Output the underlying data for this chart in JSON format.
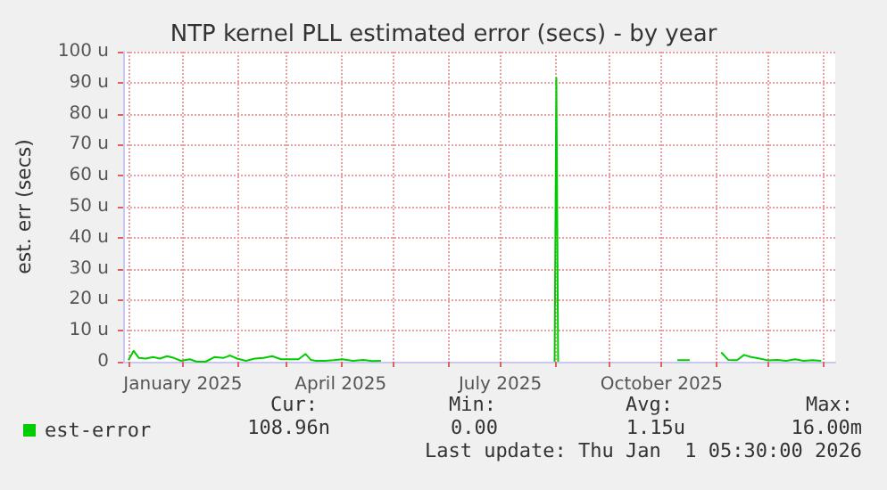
{
  "chart_data": {
    "type": "line",
    "title": "NTP kernel PLL estimated error (secs) - by year",
    "ylabel": "est. err (secs)",
    "x": [
      "2024-12-01",
      "2024-12-04",
      "2024-12-07",
      "2024-12-11",
      "2024-12-15",
      "2024-12-19",
      "2024-12-23",
      "2024-12-27",
      "2024-12-31",
      "2025-01-05",
      "2025-01-09",
      "2025-01-14",
      "2025-01-19",
      "2025-01-24",
      "2025-01-28",
      "2025-02-01",
      "2025-02-06",
      "2025-02-11",
      "2025-02-16",
      "2025-02-21",
      "2025-02-26",
      "2025-03-03",
      "2025-03-08",
      "2025-03-12",
      "2025-03-15",
      "2025-03-18",
      "2025-03-23",
      "2025-03-28",
      "2025-04-02",
      "2025-04-08",
      "2025-04-14",
      "2025-04-19",
      "2025-04-24",
      "2025-04-25",
      "2025-08-01",
      "2025-08-02",
      "2025-08-03",
      "2025-08-04",
      "2025-10-10",
      "2025-10-17",
      "2025-10-18",
      "2025-11-03",
      "2025-11-04",
      "2025-11-08",
      "2025-11-13",
      "2025-11-17",
      "2025-11-21",
      "2025-11-26",
      "2025-12-01",
      "2025-12-06",
      "2025-12-11",
      "2025-12-16",
      "2025-12-21",
      "2025-12-26",
      "2025-12-31"
    ],
    "series": [
      {
        "name": "est-error",
        "color": "#00cc00",
        "values": [
          0.5,
          3.5,
          1.2,
          1.0,
          1.5,
          1.0,
          1.8,
          1.2,
          0.3,
          0.8,
          0,
          0,
          1.5,
          1.2,
          2.0,
          1.0,
          0.3,
          1.0,
          1.2,
          1.8,
          0.8,
          0.8,
          0.8,
          2.5,
          0.6,
          0.3,
          0.3,
          0.5,
          0.8,
          0.3,
          0.6,
          0.2,
          0.3,
          null,
          0,
          91.5,
          0,
          null,
          0.5,
          0.5,
          null,
          null,
          3.0,
          0.6,
          0.5,
          2.2,
          1.5,
          1.0,
          0.4,
          0.6,
          0.3,
          0.8,
          0.3,
          0.5,
          0.3
        ]
      }
    ],
    "xlim": [
      "2024-11-28",
      "2026-01-08"
    ],
    "xticks": [
      {
        "value": "2024-12-01",
        "label": null
      },
      {
        "value": "2025-01-01",
        "label": "January 2025"
      },
      {
        "value": "2025-02-01",
        "label": null
      },
      {
        "value": "2025-03-01",
        "label": null
      },
      {
        "value": "2025-04-01",
        "label": "April 2025"
      },
      {
        "value": "2025-05-01",
        "label": null
      },
      {
        "value": "2025-06-01",
        "label": null
      },
      {
        "value": "2025-07-01",
        "label": "July 2025"
      },
      {
        "value": "2025-08-01",
        "label": null
      },
      {
        "value": "2025-09-01",
        "label": null
      },
      {
        "value": "2025-10-01",
        "label": "October 2025"
      },
      {
        "value": "2025-11-01",
        "label": null
      },
      {
        "value": "2025-12-01",
        "label": null
      },
      {
        "value": "2026-01-01",
        "label": null
      }
    ],
    "ylim": [
      0,
      100
    ],
    "yticks": [
      0,
      {
        "value": 10,
        "label": "10 u"
      },
      {
        "value": 20,
        "label": "20 u"
      },
      {
        "value": 30,
        "label": "30 u"
      },
      {
        "value": 40,
        "label": "40 u"
      },
      {
        "value": 50,
        "label": "50 u"
      },
      {
        "value": 60,
        "label": "60 u"
      },
      {
        "value": 70,
        "label": "70 u"
      },
      {
        "value": 80,
        "label": "80 u"
      },
      {
        "value": 90,
        "label": "90 u"
      },
      {
        "value": 100,
        "label": "100 u"
      }
    ],
    "grid": true,
    "legend": "bottom left",
    "marker": "none",
    "line_style": "solid",
    "annotations": [
      "Cur:",
      "Min:",
      "Avg:",
      "Max:",
      "108.96n",
      "0.00",
      "1.15u",
      "16.00m",
      "Last update: Thu Jan  1 05:30:00 2026"
    ]
  }
}
